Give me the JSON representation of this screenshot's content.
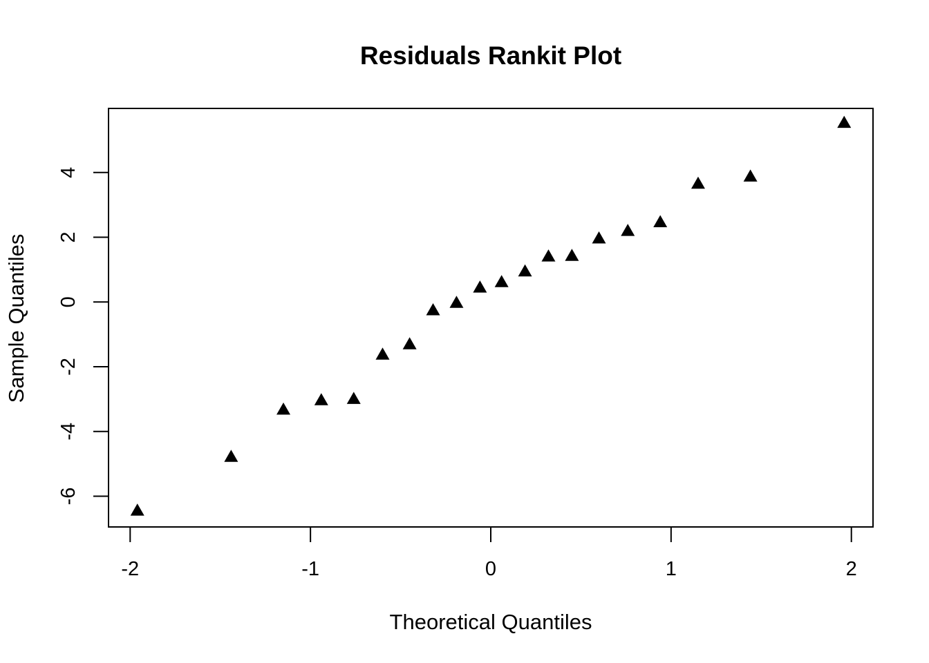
{
  "chart_data": {
    "type": "scatter",
    "title": "Residuals Rankit Plot",
    "xlabel": "Theoretical Quantiles",
    "ylabel": "Sample Quantiles",
    "xlim": [
      -2.12,
      2.12
    ],
    "ylim": [
      -6.95,
      5.98
    ],
    "x_ticks": [
      -2,
      -1,
      0,
      1,
      2
    ],
    "x_tick_labels": [
      "-2",
      "-1",
      "0",
      "1",
      "2"
    ],
    "y_ticks": [
      -6,
      -4,
      -2,
      0,
      2,
      4
    ],
    "y_tick_labels": [
      "-6",
      "-4",
      "-2",
      "0",
      "2",
      "4"
    ],
    "grid": false,
    "marker": "triangle",
    "marker_color": "#000000",
    "points": [
      {
        "x": -1.96,
        "y": -6.44
      },
      {
        "x": -1.44,
        "y": -4.78
      },
      {
        "x": -1.15,
        "y": -3.32
      },
      {
        "x": -0.94,
        "y": -3.03
      },
      {
        "x": -0.76,
        "y": -2.99
      },
      {
        "x": -0.6,
        "y": -1.62
      },
      {
        "x": -0.45,
        "y": -1.3
      },
      {
        "x": -0.32,
        "y": -0.25
      },
      {
        "x": -0.19,
        "y": -0.02
      },
      {
        "x": -0.06,
        "y": 0.45
      },
      {
        "x": 0.06,
        "y": 0.62
      },
      {
        "x": 0.19,
        "y": 0.95
      },
      {
        "x": 0.32,
        "y": 1.41
      },
      {
        "x": 0.45,
        "y": 1.43
      },
      {
        "x": 0.6,
        "y": 1.97
      },
      {
        "x": 0.76,
        "y": 2.2
      },
      {
        "x": 0.94,
        "y": 2.47
      },
      {
        "x": 1.15,
        "y": 3.66
      },
      {
        "x": 1.44,
        "y": 3.88
      },
      {
        "x": 1.96,
        "y": 5.54
      }
    ]
  }
}
